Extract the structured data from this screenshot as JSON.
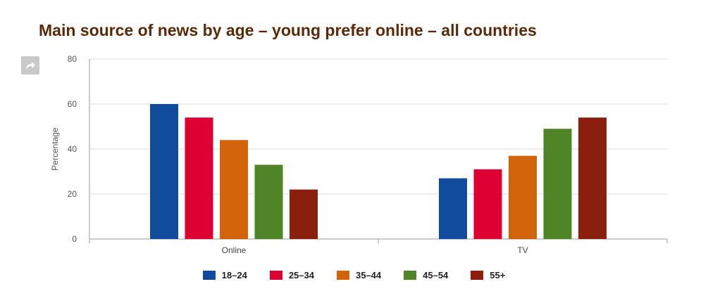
{
  "title": "Main source of news by age – young prefer online – all countries",
  "share_icon": "share-arrow-icon",
  "chart_data": {
    "type": "bar",
    "title": "Main source of news by age – young prefer online – all countries",
    "xlabel": "",
    "ylabel": "Percentage",
    "ylim": [
      0,
      80
    ],
    "yticks": [
      0,
      20,
      40,
      60,
      80
    ],
    "grid": true,
    "legend_position": "bottom",
    "categories": [
      "Online",
      "TV"
    ],
    "series": [
      {
        "name": "18–24",
        "color": "#114b9c",
        "values": [
          60,
          27
        ]
      },
      {
        "name": "25–34",
        "color": "#de0032",
        "values": [
          54,
          31
        ]
      },
      {
        "name": "35–44",
        "color": "#d4640c",
        "values": [
          44,
          37
        ]
      },
      {
        "name": "45–54",
        "color": "#4f8427",
        "values": [
          33,
          49
        ]
      },
      {
        "name": "55+",
        "color": "#8a1f0e",
        "values": [
          22,
          54
        ]
      }
    ]
  }
}
